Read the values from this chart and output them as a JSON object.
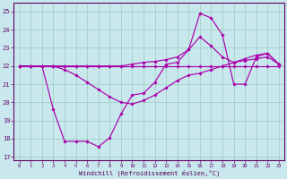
{
  "background_color": "#c8e8ee",
  "grid_color": "#99ccbb",
  "line_color": "#aa00aa",
  "xlabel": "Windchill (Refroidissement éolien,°C)",
  "x_ticks": [
    0,
    1,
    2,
    3,
    4,
    5,
    6,
    7,
    8,
    9,
    10,
    11,
    12,
    13,
    14,
    15,
    16,
    17,
    18,
    19,
    20,
    21,
    22,
    23
  ],
  "yticks": [
    17,
    18,
    19,
    20,
    21,
    22,
    23,
    24,
    25
  ],
  "ylim": [
    16.8,
    25.5
  ],
  "xlim": [
    -0.5,
    23.5
  ],
  "line1_y": [
    22,
    22,
    22,
    22,
    22,
    22,
    22,
    22,
    22,
    22,
    22,
    22,
    22,
    22,
    22,
    22,
    22,
    22,
    22,
    22,
    22,
    22,
    22,
    22
  ],
  "line2_y": [
    22,
    22,
    22,
    19.6,
    17.85,
    17.85,
    17.85,
    17.55,
    18.05,
    19.35,
    20.4,
    20.5,
    21.1,
    22.1,
    22.2,
    22.9,
    24.9,
    24.65,
    23.7,
    21.0,
    21.0,
    22.5,
    22.7,
    22.1
  ],
  "line3_y": [
    22,
    22,
    22,
    22,
    22,
    22,
    22,
    22,
    22,
    22,
    22.1,
    22.2,
    22.25,
    22.35,
    22.5,
    22.9,
    23.6,
    23.1,
    22.5,
    22.2,
    22.4,
    22.6,
    22.7,
    22.1
  ],
  "line4_y": [
    22,
    22,
    22,
    22,
    21.8,
    21.5,
    21.1,
    20.7,
    20.3,
    20.0,
    19.9,
    20.1,
    20.4,
    20.8,
    21.2,
    21.5,
    21.6,
    21.8,
    22.0,
    22.2,
    22.3,
    22.4,
    22.5,
    22.1
  ]
}
